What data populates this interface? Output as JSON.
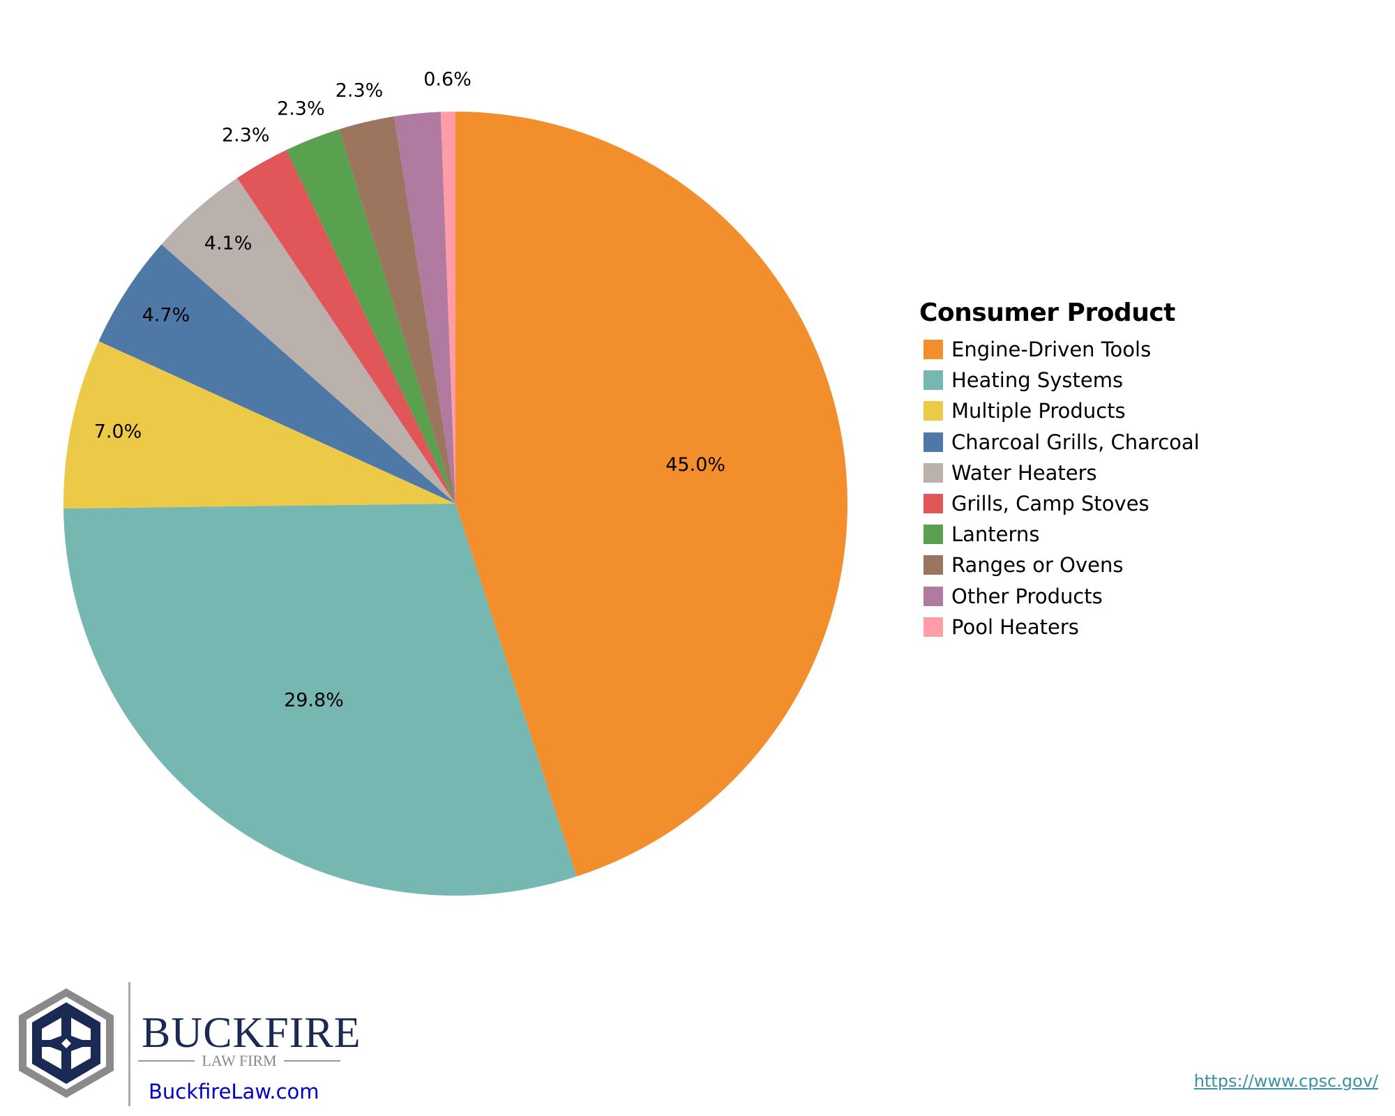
{
  "chart_data": {
    "type": "pie",
    "title": "",
    "legend_title": "Consumer Product",
    "legend_position": "right",
    "start_angle": "12 o'clock, clockwise",
    "slices": [
      {
        "name": "Engine-Driven Tools",
        "value": 45.0,
        "label": "45.0%",
        "color": "#f28e2b"
      },
      {
        "name": "Heating Systems",
        "value": 29.8,
        "label": "29.8%",
        "color": "#76b7b2"
      },
      {
        "name": "Multiple Products",
        "value": 7.0,
        "label": "7.0%",
        "color": "#edc948"
      },
      {
        "name": "Charcoal Grills, Charcoal",
        "value": 4.7,
        "label": "4.7%",
        "color": "#4e79a7"
      },
      {
        "name": "Water Heaters",
        "value": 4.1,
        "label": "4.1%",
        "color": "#bab0ac"
      },
      {
        "name": "Grills, Camp Stoves",
        "value": 2.3,
        "label": "2.3%",
        "color": "#e15759"
      },
      {
        "name": "Lanterns",
        "value": 2.3,
        "label": "2.3%",
        "color": "#59a14f"
      },
      {
        "name": "Ranges or Ovens",
        "value": 2.3,
        "label": "2.3%",
        "color": "#9c755f"
      },
      {
        "name": "Other Products",
        "value": 1.9,
        "label": "",
        "color": "#b07aa1"
      },
      {
        "name": "Pool Heaters",
        "value": 0.6,
        "label": "0.6%",
        "color": "#ff9da7"
      }
    ]
  },
  "branding": {
    "name": "BUCKFIRE",
    "tagline": "LAW FIRM",
    "website": "BuckfireLaw.com",
    "logo_color": "#1b2a55"
  },
  "source": "https://www.cpsc.gov/"
}
